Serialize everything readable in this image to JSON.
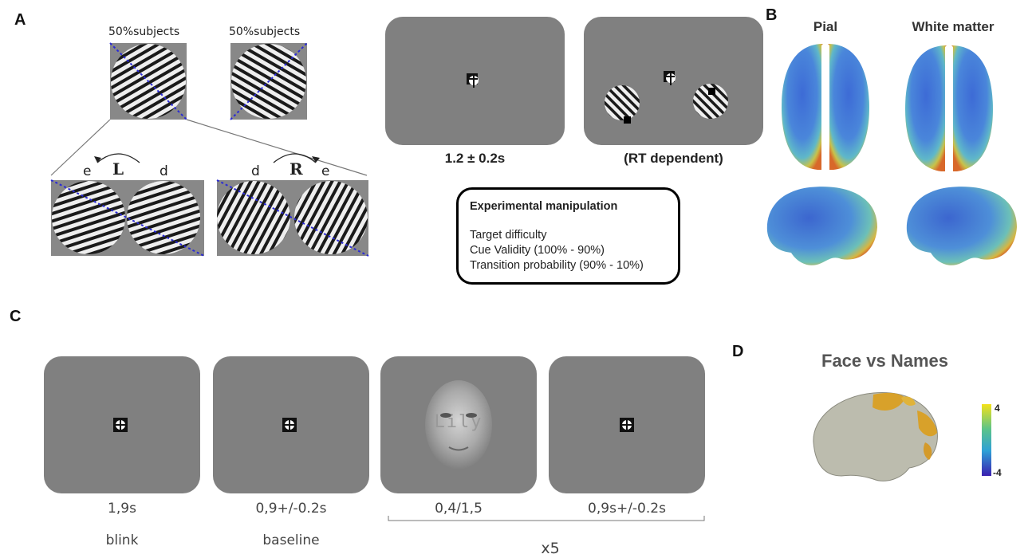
{
  "panels": {
    "a": "A",
    "b": "B",
    "c": "C",
    "d": "D"
  },
  "panel_a": {
    "grating_labels": [
      "50%subjects",
      "50%subjects"
    ],
    "pair_left": {
      "left_label": "e",
      "rotation": "L",
      "right_label": "d"
    },
    "pair_right": {
      "left_label": "d",
      "rotation": "R",
      "right_label": "e"
    },
    "screen_captions": [
      "1.2 ± 0.2s",
      "(RT dependent)"
    ],
    "manipulation": {
      "title": "Experimental manipulation",
      "lines": [
        "Target difficulty",
        "Cue Validity  (100% - 90%)",
        "Transition probability (90% - 10%)"
      ]
    }
  },
  "panel_b": {
    "headers": [
      "Pial",
      "White matter"
    ]
  },
  "panel_c": {
    "durations": [
      "1,9s",
      "0,9+/-0.2s",
      "0,4/1,5",
      "0,9s+/-0.2s"
    ],
    "labels": [
      "blink",
      "baseline"
    ],
    "repeat": "x5",
    "face_name": "Lily"
  },
  "panel_d": {
    "title": "Face vs Names",
    "colorbar": {
      "max": "4",
      "min": "-4"
    }
  },
  "colors": {
    "screen_gray": "#808080",
    "dashed_line": "#2a2ad6"
  }
}
